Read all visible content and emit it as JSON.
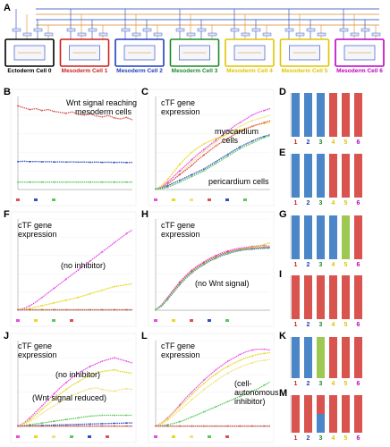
{
  "panel_letters": [
    "A",
    "B",
    "C",
    "D",
    "E",
    "F",
    "G",
    "H",
    "I",
    "J",
    "K",
    "L",
    "M"
  ],
  "cells": [
    {
      "label": "Ectoderm Cell 0",
      "color": "#000000"
    },
    {
      "label": "Mesoderm Cell 1",
      "color": "#cc1f1f"
    },
    {
      "label": "Mesoderm Cell 2",
      "color": "#1f3fbf"
    },
    {
      "label": "Mesoderm Cell 3",
      "color": "#1e8a2a"
    },
    {
      "label": "Mesoderm Cell 4",
      "color": "#e0c400"
    },
    {
      "label": "Mesoderm Cell 5",
      "color": "#e0c400"
    },
    {
      "label": "Mesoderm Cell 6",
      "color": "#c000c0"
    }
  ],
  "annotations": {
    "B": [
      "Wnt signal reaching",
      "mesoderm cells"
    ],
    "C": [
      "cTF gene",
      "expression"
    ],
    "C_myo": [
      "myocardium",
      "cells"
    ],
    "C_peri": "pericardium cells",
    "F": [
      "cTF gene",
      "expression"
    ],
    "F_inh": "(no inhibitor)",
    "H": [
      "cTF gene",
      "expression"
    ],
    "H_wnt": "(no Wnt signal)",
    "J": [
      "cTF gene",
      "expression"
    ],
    "J_inh": "(no inhibitor)",
    "J_wnt": "(Wnt signal reduced)",
    "L": [
      "cTF gene",
      "expression"
    ],
    "L_cell": [
      "(cell-",
      "autonomous",
      "inhibitor)"
    ]
  },
  "bar_numbers": [
    "1",
    "2",
    "3",
    "4",
    "5",
    "6"
  ],
  "bar_number_colors": [
    "#cc1f1f",
    "#1f3fbf",
    "#1e8a2a",
    "#e0c400",
    "#e0c400",
    "#c000c0"
  ],
  "bar_colors": {
    "blue": "#4a86c8",
    "red": "#d9534f",
    "green": "#9dc852"
  },
  "chart_data": [
    {
      "panel": "B",
      "type": "line",
      "series": [
        {
          "color": "#d9534f",
          "values": [
            900,
            880,
            860,
            870,
            850,
            860,
            840,
            830,
            820,
            835,
            810,
            800,
            815,
            790,
            780,
            795,
            770,
            760,
            775,
            750
          ]
        },
        {
          "color": "#3050c0",
          "values": [
            300,
            305,
            300,
            302,
            298,
            300,
            296,
            298,
            295,
            297,
            294,
            296,
            293,
            295,
            292,
            294,
            291,
            293,
            290,
            292
          ]
        },
        {
          "color": "#5cc85c",
          "values": [
            80,
            80,
            80,
            80,
            80,
            80,
            80,
            80,
            80,
            80,
            80,
            80,
            80,
            80,
            80,
            80,
            80,
            80,
            80,
            80
          ]
        }
      ]
    },
    {
      "panel": "C",
      "type": "line",
      "series": [
        {
          "color": "#e64ce6",
          "values": [
            5,
            30,
            80,
            140,
            200,
            260,
            320,
            380,
            430,
            480,
            530,
            580,
            630,
            680,
            720,
            760,
            800,
            830,
            850,
            870
          ]
        },
        {
          "color": "#e8d820",
          "values": [
            5,
            40,
            110,
            190,
            270,
            340,
            400,
            450,
            490,
            520,
            550,
            570,
            600,
            620,
            640,
            660,
            680,
            700,
            710,
            720
          ]
        },
        {
          "color": "#f2e080",
          "values": [
            5,
            20,
            60,
            110,
            170,
            230,
            290,
            350,
            410,
            460,
            510,
            560,
            600,
            640,
            680,
            710,
            740,
            760,
            780,
            800
          ]
        },
        {
          "color": "#d9534f",
          "values": [
            5,
            20,
            60,
            110,
            160,
            210,
            260,
            320,
            370,
            420,
            470,
            510,
            550,
            590,
            620,
            650,
            680,
            700,
            720,
            740
          ]
        },
        {
          "color": "#3050c0",
          "values": [
            5,
            15,
            40,
            70,
            100,
            130,
            160,
            190,
            220,
            260,
            300,
            340,
            380,
            420,
            460,
            490,
            520,
            550,
            570,
            590
          ]
        },
        {
          "color": "#5cc85c",
          "values": [
            5,
            10,
            25,
            50,
            80,
            110,
            140,
            170,
            200,
            240,
            280,
            320,
            360,
            400,
            440,
            470,
            500,
            530,
            560,
            580
          ]
        }
      ]
    },
    {
      "panel": "F",
      "type": "line",
      "series": [
        {
          "color": "#e64ce6",
          "values": [
            5,
            20,
            50,
            90,
            140,
            190,
            240,
            290,
            340,
            390,
            440,
            490,
            540,
            590,
            640,
            690,
            740,
            790,
            840,
            880
          ]
        },
        {
          "color": "#e8d820",
          "values": [
            5,
            10,
            20,
            35,
            50,
            65,
            80,
            95,
            110,
            125,
            140,
            160,
            180,
            200,
            220,
            240,
            260,
            270,
            280,
            290
          ]
        },
        {
          "color": "#5cc85c",
          "values": [
            5,
            5,
            5,
            5,
            5,
            5,
            5,
            5,
            5,
            5,
            5,
            5,
            5,
            5,
            5,
            5,
            5,
            5,
            5,
            5
          ]
        },
        {
          "color": "#d9534f",
          "values": [
            5,
            5,
            5,
            5,
            5,
            5,
            5,
            5,
            5,
            5,
            5,
            5,
            5,
            5,
            5,
            5,
            5,
            5,
            5,
            5
          ]
        }
      ]
    },
    {
      "panel": "H",
      "type": "line",
      "series": [
        {
          "color": "#e64ce6",
          "values": [
            5,
            60,
            140,
            230,
            310,
            380,
            440,
            490,
            530,
            570,
            600,
            630,
            650,
            670,
            680,
            690,
            700,
            705,
            710,
            700
          ]
        },
        {
          "color": "#e8d820",
          "values": [
            5,
            50,
            130,
            210,
            290,
            360,
            420,
            470,
            510,
            550,
            580,
            610,
            630,
            650,
            670,
            680,
            690,
            700,
            720,
            740
          ]
        },
        {
          "color": "#d9534f",
          "values": [
            5,
            55,
            135,
            220,
            300,
            370,
            430,
            480,
            520,
            560,
            590,
            615,
            640,
            655,
            665,
            675,
            680,
            685,
            690,
            690
          ]
        },
        {
          "color": "#3050c0",
          "values": [
            5,
            45,
            120,
            200,
            280,
            350,
            410,
            460,
            500,
            540,
            570,
            600,
            620,
            640,
            655,
            665,
            670,
            675,
            680,
            680
          ]
        },
        {
          "color": "#5cc85c",
          "values": [
            5,
            50,
            125,
            205,
            285,
            355,
            415,
            465,
            505,
            545,
            575,
            605,
            625,
            645,
            660,
            670,
            675,
            680,
            685,
            690
          ]
        }
      ]
    },
    {
      "panel": "J",
      "type": "line",
      "series": [
        {
          "color": "#e64ce6",
          "values": [
            5,
            40,
            100,
            170,
            240,
            310,
            380,
            450,
            510,
            570,
            620,
            660,
            700,
            730,
            760,
            780,
            800,
            780,
            760,
            740
          ]
        },
        {
          "color": "#e8d820",
          "values": [
            5,
            30,
            80,
            140,
            200,
            260,
            320,
            380,
            430,
            480,
            520,
            560,
            590,
            620,
            640,
            650,
            660,
            640,
            630,
            620
          ]
        },
        {
          "color": "#f2e080",
          "values": [
            5,
            20,
            60,
            100,
            150,
            200,
            240,
            280,
            320,
            360,
            390,
            420,
            440,
            450,
            430,
            420,
            410,
            430,
            440,
            430
          ]
        },
        {
          "color": "#5cc85c",
          "values": [
            5,
            10,
            20,
            30,
            40,
            50,
            60,
            70,
            80,
            90,
            100,
            110,
            120,
            125,
            130,
            130,
            130,
            130,
            130,
            130
          ]
        },
        {
          "color": "#3050c0",
          "values": [
            5,
            5,
            8,
            10,
            12,
            14,
            16,
            18,
            20,
            22,
            24,
            26,
            28,
            30,
            32,
            34,
            36,
            38,
            40,
            42
          ]
        },
        {
          "color": "#d9534f",
          "values": [
            5,
            5,
            5,
            5,
            5,
            5,
            5,
            5,
            5,
            5,
            5,
            5,
            5,
            5,
            5,
            5,
            5,
            5,
            5,
            5
          ]
        }
      ]
    },
    {
      "panel": "L",
      "type": "line",
      "series": [
        {
          "color": "#e64ce6",
          "values": [
            5,
            40,
            100,
            170,
            250,
            330,
            400,
            470,
            540,
            600,
            660,
            710,
            760,
            800,
            840,
            870,
            890,
            900,
            900,
            890
          ]
        },
        {
          "color": "#e8d820",
          "values": [
            5,
            35,
            90,
            160,
            230,
            300,
            370,
            440,
            500,
            560,
            610,
            660,
            700,
            740,
            770,
            800,
            820,
            840,
            850,
            860
          ]
        },
        {
          "color": "#f2e080",
          "values": [
            5,
            25,
            70,
            130,
            190,
            250,
            310,
            370,
            430,
            480,
            530,
            580,
            620,
            660,
            690,
            720,
            740,
            760,
            770,
            780
          ]
        },
        {
          "color": "#5cc85c",
          "values": [
            5,
            10,
            20,
            35,
            55,
            80,
            110,
            140,
            170,
            200,
            230,
            260,
            290,
            320,
            350,
            380,
            410,
            440,
            480,
            520
          ]
        },
        {
          "color": "#d9534f",
          "values": [
            5,
            5,
            5,
            5,
            5,
            5,
            5,
            5,
            5,
            5,
            5,
            5,
            5,
            5,
            5,
            5,
            5,
            5,
            5,
            5
          ]
        }
      ]
    },
    {
      "panel": "D",
      "type": "bar",
      "categories": [
        "1",
        "2",
        "3",
        "4",
        "5",
        "6"
      ],
      "segments": [
        [
          "blue"
        ],
        [
          "blue"
        ],
        [
          "blue"
        ],
        [
          "red"
        ],
        [
          "red"
        ],
        [
          "red"
        ]
      ]
    },
    {
      "panel": "E",
      "type": "bar",
      "categories": [
        "1",
        "2",
        "3",
        "4",
        "5",
        "6"
      ],
      "segments": [
        [
          "blue"
        ],
        [
          "blue"
        ],
        [
          "blue"
        ],
        [
          "red"
        ],
        [
          "red"
        ],
        [
          "red"
        ]
      ]
    },
    {
      "panel": "G",
      "type": "bar",
      "categories": [
        "1",
        "2",
        "3",
        "4",
        "5",
        "6"
      ],
      "segments": [
        [
          "blue"
        ],
        [
          "blue"
        ],
        [
          "blue"
        ],
        [
          "blue"
        ],
        [
          "green"
        ],
        [
          "red"
        ]
      ]
    },
    {
      "panel": "I",
      "type": "bar",
      "categories": [
        "1",
        "2",
        "3",
        "4",
        "5",
        "6"
      ],
      "segments": [
        [
          "red"
        ],
        [
          "red"
        ],
        [
          "red"
        ],
        [
          "red"
        ],
        [
          "red"
        ],
        [
          "red"
        ]
      ]
    },
    {
      "panel": "K",
      "type": "bar",
      "categories": [
        "1",
        "2",
        "3",
        "4",
        "5",
        "6"
      ],
      "segments": [
        [
          "blue"
        ],
        [
          "blue"
        ],
        [
          "green"
        ],
        [
          "red"
        ],
        [
          "red"
        ],
        [
          "red"
        ]
      ]
    },
    {
      "panel": "M",
      "type": "bar",
      "categories": [
        "1",
        "2",
        "3",
        "4",
        "5",
        "6"
      ],
      "segments": [
        [
          "red"
        ],
        [
          "red"
        ],
        [
          "red",
          "blue"
        ],
        [
          "red"
        ],
        [
          "red"
        ],
        [
          "red"
        ]
      ]
    }
  ]
}
